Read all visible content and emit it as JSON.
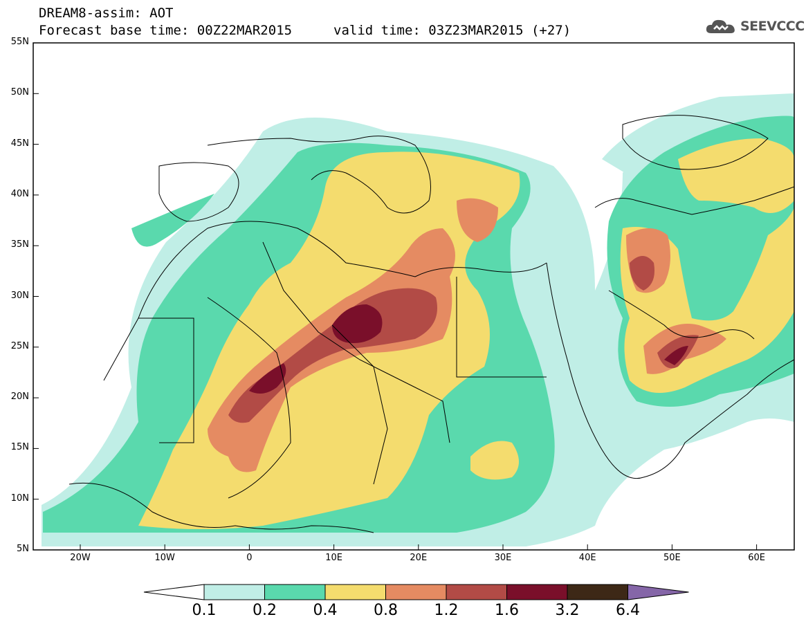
{
  "header": {
    "title": "DREAM8-assim: AOT",
    "base_time": "Forecast base time: 00Z22MAR2015",
    "valid_time": "valid time: 03Z23MAR2015 (+27)",
    "logo_text": "SEEVCCC",
    "logo_icon": "cloud-icon"
  },
  "map": {
    "lat_labels": [
      "55N",
      "50N",
      "45N",
      "40N",
      "35N",
      "30N",
      "25N",
      "20N",
      "15N",
      "10N",
      "5N"
    ],
    "lon_labels": [
      "20W",
      "10W",
      "0",
      "10E",
      "20E",
      "30E",
      "40E",
      "50E",
      "60E"
    ]
  },
  "colorbar": {
    "levels": [
      "0.1",
      "0.2",
      "0.4",
      "0.8",
      "1.2",
      "1.6",
      "3.2",
      "6.4"
    ],
    "colors": [
      "#ffffff",
      "#c0eee6",
      "#5ad9ad",
      "#f4dc6e",
      "#e58b62",
      "#b24b46",
      "#7a0f2a",
      "#3d2816",
      "#8566a8"
    ]
  }
}
